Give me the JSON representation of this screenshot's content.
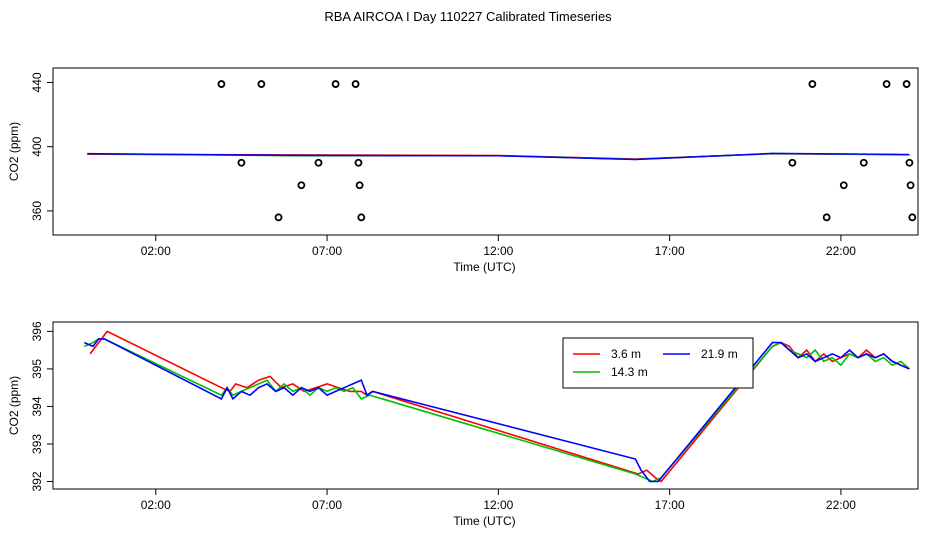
{
  "title": "RBA AIRCOA I  Day 110227  Calibrated Timeseries",
  "colors": {
    "s1": "#ff0000",
    "s2": "#00c000",
    "s3": "#0000ff",
    "axis": "#000000"
  },
  "chart_data": [
    {
      "type": "scatter",
      "xlabel": "Time (UTC)",
      "ylabel": "CO2 (ppm)",
      "x_ticks": [
        "02:00",
        "07:00",
        "12:00",
        "17:00",
        "22:00"
      ],
      "y_ticks": [
        "360",
        "400",
        "440"
      ],
      "xlim": [
        "-1:00",
        "24:15"
      ],
      "ylim": [
        345,
        449
      ],
      "grid": false,
      "points": [
        {
          "x": "03:55",
          "y": 439
        },
        {
          "x": "04:30",
          "y": 390
        },
        {
          "x": "05:05",
          "y": 439
        },
        {
          "x": "05:35",
          "y": 356
        },
        {
          "x": "06:15",
          "y": 376
        },
        {
          "x": "06:45",
          "y": 390
        },
        {
          "x": "07:15",
          "y": 439
        },
        {
          "x": "07:50",
          "y": 439
        },
        {
          "x": "07:55",
          "y": 390
        },
        {
          "x": "07:57",
          "y": 376
        },
        {
          "x": "08:00",
          "y": 356
        },
        {
          "x": "20:35",
          "y": 390
        },
        {
          "x": "21:10",
          "y": 439
        },
        {
          "x": "21:35",
          "y": 356
        },
        {
          "x": "22:05",
          "y": 376
        },
        {
          "x": "22:40",
          "y": 390
        },
        {
          "x": "23:20",
          "y": 439
        },
        {
          "x": "23:55",
          "y": 439
        },
        {
          "x": "24:00",
          "y": 390
        },
        {
          "x": "24:02",
          "y": 376
        },
        {
          "x": "24:05",
          "y": 356
        }
      ],
      "series": [
        {
          "values_x": [
            "00:00",
            "06:00",
            "12:00",
            "16:00",
            "20:00",
            "24:00"
          ],
          "values_y": [
            395.3,
            394.9,
            394.5,
            392.3,
            395.6,
            395.0
          ],
          "color": "#ff0000"
        },
        {
          "values_x": [
            "00:00",
            "06:00",
            "12:00",
            "16:00",
            "20:00",
            "24:00"
          ],
          "values_y": [
            395.6,
            394.4,
            394.4,
            392.1,
            395.7,
            395.0
          ],
          "color": "#00c000"
        },
        {
          "values_x": [
            "00:00",
            "06:00",
            "12:00",
            "16:00",
            "20:00",
            "24:00"
          ],
          "values_y": [
            395.7,
            394.6,
            394.3,
            392.0,
            395.8,
            395.1
          ],
          "color": "#0000ff"
        }
      ]
    },
    {
      "type": "line",
      "xlabel": "Time (UTC)",
      "ylabel": "CO2 (ppm)",
      "x_ticks": [
        "02:00",
        "07:00",
        "12:00",
        "17:00",
        "22:00"
      ],
      "y_ticks": [
        "392",
        "393",
        "394",
        "395",
        "396"
      ],
      "xlim": [
        "-1:00",
        "24:15"
      ],
      "ylim": [
        391.8,
        396.25
      ],
      "grid": false,
      "legend": {
        "placement": "top-right"
      },
      "series": [
        {
          "name": "3.6 m",
          "color": "#ff0000",
          "points": [
            [
              "00:05",
              395.4
            ],
            [
              "00:15",
              395.6
            ],
            [
              "00:25",
              395.8
            ],
            [
              "00:35",
              396.0
            ],
            [
              "03:55",
              394.5
            ],
            [
              "04:10",
              394.4
            ],
            [
              "04:20",
              394.6
            ],
            [
              "04:40",
              394.5
            ],
            [
              "05:00",
              394.7
            ],
            [
              "05:20",
              394.8
            ],
            [
              "05:40",
              394.5
            ],
            [
              "06:00",
              394.6
            ],
            [
              "06:20",
              394.4
            ],
            [
              "06:40",
              394.5
            ],
            [
              "07:00",
              394.6
            ],
            [
              "07:20",
              394.5
            ],
            [
              "07:40",
              394.4
            ],
            [
              "08:00",
              394.4
            ],
            [
              "08:10",
              394.3
            ],
            [
              "08:20",
              394.4
            ],
            [
              "16:05",
              392.2
            ],
            [
              "16:20",
              392.3
            ],
            [
              "16:35",
              392.1
            ],
            [
              "16:45",
              392.0
            ],
            [
              "20:00",
              395.6
            ],
            [
              "20:15",
              395.7
            ],
            [
              "20:30",
              395.6
            ],
            [
              "20:45",
              395.3
            ],
            [
              "21:00",
              395.5
            ],
            [
              "21:15",
              395.2
            ],
            [
              "21:30",
              395.4
            ],
            [
              "21:45",
              395.2
            ],
            [
              "22:00",
              395.3
            ],
            [
              "22:15",
              395.4
            ],
            [
              "22:30",
              395.3
            ],
            [
              "22:45",
              395.5
            ],
            [
              "23:00",
              395.3
            ],
            [
              "23:15",
              395.4
            ],
            [
              "23:30",
              395.2
            ],
            [
              "23:45",
              395.1
            ],
            [
              "24:00",
              395.0
            ]
          ]
        },
        {
          "name": "14.3 m",
          "color": "#00c000",
          "points": [
            [
              "-00:05",
              395.6
            ],
            [
              "00:10",
              395.7
            ],
            [
              "00:20",
              395.8
            ],
            [
              "00:30",
              395.8
            ],
            [
              "03:55",
              394.3
            ],
            [
              "04:05",
              394.5
            ],
            [
              "04:15",
              394.3
            ],
            [
              "04:30",
              394.4
            ],
            [
              "04:45",
              394.5
            ],
            [
              "05:00",
              394.6
            ],
            [
              "05:15",
              394.7
            ],
            [
              "05:30",
              394.4
            ],
            [
              "05:45",
              394.6
            ],
            [
              "06:00",
              394.4
            ],
            [
              "06:15",
              394.5
            ],
            [
              "06:30",
              394.3
            ],
            [
              "06:45",
              394.5
            ],
            [
              "07:00",
              394.4
            ],
            [
              "07:15",
              394.5
            ],
            [
              "07:30",
              394.4
            ],
            [
              "07:45",
              394.5
            ],
            [
              "08:00",
              394.2
            ],
            [
              "08:15",
              394.3
            ],
            [
              "16:00",
              392.2
            ],
            [
              "16:15",
              392.1
            ],
            [
              "16:30",
              392.0
            ],
            [
              "16:45",
              392.1
            ],
            [
              "20:00",
              395.6
            ],
            [
              "20:15",
              395.7
            ],
            [
              "20:30",
              395.5
            ],
            [
              "20:45",
              395.4
            ],
            [
              "21:00",
              395.3
            ],
            [
              "21:15",
              395.5
            ],
            [
              "21:30",
              395.2
            ],
            [
              "21:45",
              395.3
            ],
            [
              "22:00",
              395.1
            ],
            [
              "22:15",
              395.4
            ],
            [
              "22:30",
              395.3
            ],
            [
              "22:45",
              395.4
            ],
            [
              "23:00",
              395.2
            ],
            [
              "23:15",
              395.3
            ],
            [
              "23:30",
              395.1
            ],
            [
              "23:45",
              395.2
            ],
            [
              "24:00",
              395.0
            ]
          ]
        },
        {
          "name": "21.9 m",
          "color": "#0000ff",
          "points": [
            [
              "-00:05",
              395.7
            ],
            [
              "00:10",
              395.6
            ],
            [
              "00:20",
              395.8
            ],
            [
              "00:30",
              395.8
            ],
            [
              "03:55",
              394.2
            ],
            [
              "04:05",
              394.5
            ],
            [
              "04:15",
              394.2
            ],
            [
              "04:30",
              394.4
            ],
            [
              "04:45",
              394.3
            ],
            [
              "05:00",
              394.5
            ],
            [
              "05:15",
              394.6
            ],
            [
              "05:30",
              394.4
            ],
            [
              "05:45",
              394.5
            ],
            [
              "06:00",
              394.3
            ],
            [
              "06:15",
              394.5
            ],
            [
              "06:30",
              394.4
            ],
            [
              "06:45",
              394.5
            ],
            [
              "07:00",
              394.3
            ],
            [
              "07:15",
              394.4
            ],
            [
              "07:30",
              394.5
            ],
            [
              "07:45",
              394.6
            ],
            [
              "08:00",
              394.7
            ],
            [
              "08:10",
              394.3
            ],
            [
              "08:20",
              394.4
            ],
            [
              "16:00",
              392.6
            ],
            [
              "16:10",
              392.3
            ],
            [
              "16:25",
              392.0
            ],
            [
              "16:40",
              392.0
            ],
            [
              "20:00",
              395.7
            ],
            [
              "20:15",
              395.7
            ],
            [
              "20:30",
              395.5
            ],
            [
              "20:45",
              395.3
            ],
            [
              "21:00",
              395.4
            ],
            [
              "21:15",
              395.2
            ],
            [
              "21:30",
              395.3
            ],
            [
              "21:45",
              395.4
            ],
            [
              "22:00",
              395.3
            ],
            [
              "22:15",
              395.5
            ],
            [
              "22:30",
              395.3
            ],
            [
              "22:45",
              395.4
            ],
            [
              "23:00",
              395.3
            ],
            [
              "23:15",
              395.4
            ],
            [
              "23:30",
              395.2
            ],
            [
              "23:45",
              395.1
            ],
            [
              "24:00",
              395.0
            ]
          ]
        }
      ]
    }
  ]
}
